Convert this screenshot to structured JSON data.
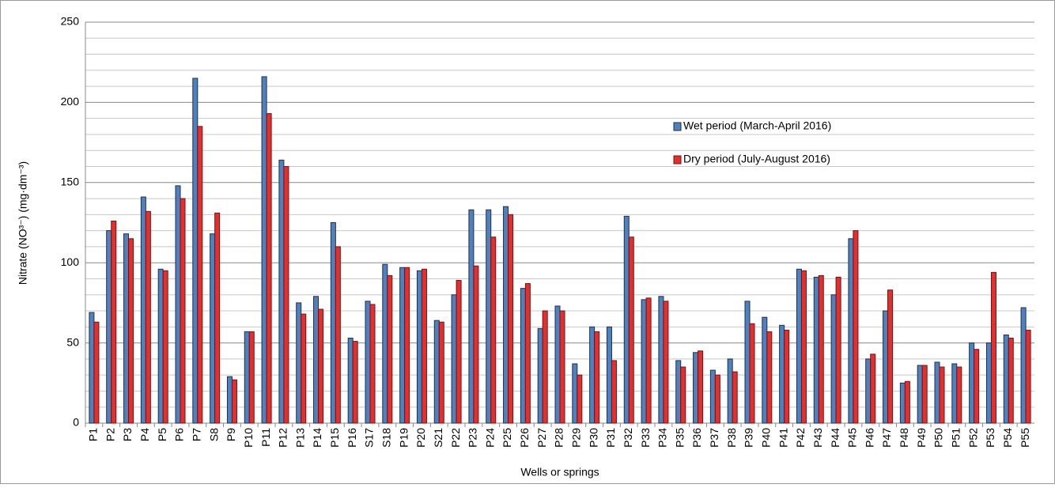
{
  "chart_data": {
    "type": "grouped_bar",
    "y_label": "Nitrate (NO³⁻) (mg·dm⁻³)",
    "x_label": "Wells or springs",
    "categories": [
      "P1",
      "P2",
      "P3",
      "P4",
      "P5",
      "P6",
      "P7",
      "S8",
      "P9",
      "P10",
      "P11",
      "P12",
      "P13",
      "P14",
      "P15",
      "P16",
      "S17",
      "S18",
      "P19",
      "P20",
      "S21",
      "P22",
      "P23",
      "P24",
      "P25",
      "P26",
      "P27",
      "P28",
      "P29",
      "P30",
      "P31",
      "P32",
      "P33",
      "P34",
      "P35",
      "P36",
      "P37",
      "P38",
      "P39",
      "P40",
      "P41",
      "P42",
      "P43",
      "P44",
      "P45",
      "P46",
      "P47",
      "P48",
      "P49",
      "P50",
      "P51",
      "P52",
      "P53",
      "P54",
      "P55"
    ],
    "series": [
      {
        "name": "Wet period (March-April 2016)",
        "color": "#4f81bd",
        "edge": "#1f2f4f",
        "values": [
          69,
          120,
          118,
          141,
          96,
          148,
          215,
          118,
          29,
          57,
          216,
          164,
          75,
          79,
          125,
          53,
          76,
          99,
          97,
          95,
          64,
          80,
          133,
          133,
          135,
          84,
          59,
          73,
          37,
          60,
          60,
          129,
          77,
          79,
          39,
          44,
          33,
          40,
          76,
          66,
          61,
          96,
          91,
          80,
          115,
          40,
          70,
          25,
          36,
          38,
          37,
          50,
          50,
          55,
          72
        ]
      },
      {
        "name": "Dry period (July-August 2016)",
        "color": "#e03030",
        "edge": "#7a1010",
        "values": [
          63,
          126,
          115,
          132,
          95,
          140,
          185,
          131,
          27,
          57,
          193,
          160,
          68,
          71,
          110,
          51,
          74,
          92,
          97,
          96,
          63,
          89,
          98,
          116,
          130,
          87,
          70,
          70,
          30,
          57,
          39,
          116,
          78,
          76,
          35,
          45,
          30,
          32,
          62,
          57,
          58,
          95,
          92,
          91,
          120,
          43,
          83,
          26,
          36,
          35,
          35,
          46,
          94,
          53,
          58
        ]
      }
    ],
    "ylim": [
      0,
      250
    ],
    "yticks": [
      0,
      50,
      100,
      150,
      200,
      250
    ],
    "minor_yticks": [
      10,
      20,
      30,
      40,
      60,
      70,
      80,
      90,
      110,
      120,
      130,
      140,
      160,
      170,
      180,
      190,
      210,
      220,
      230,
      240
    ],
    "grid": true,
    "legend_position": "right"
  }
}
